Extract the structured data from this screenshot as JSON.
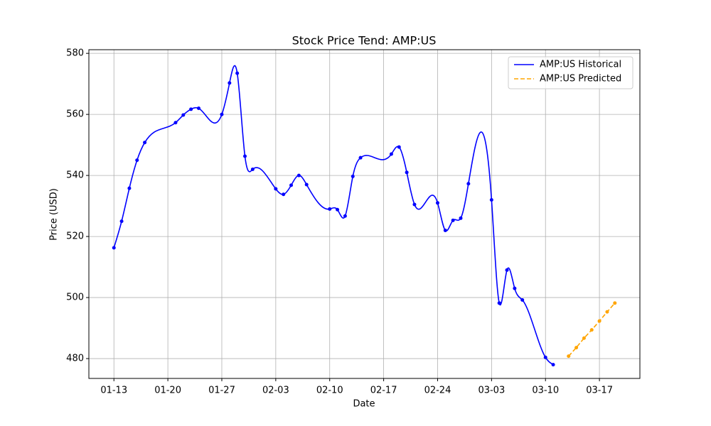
{
  "chart_data": {
    "type": "line",
    "title": "Stock Price Tend: AMP:US",
    "xlabel": "Date",
    "ylabel": "Price (USD)",
    "ylim": [
      473.5,
      581.2
    ],
    "yticks": [
      480,
      500,
      520,
      540,
      560,
      580
    ],
    "xticks": [
      "01-13",
      "01-20",
      "01-27",
      "02-03",
      "02-10",
      "02-17",
      "02-24",
      "03-03",
      "03-10",
      "03-17"
    ],
    "grid": true,
    "legend": "upper right",
    "series": [
      {
        "name": "AMP:US Historical",
        "color": "#0000ff",
        "style": "solid",
        "smooth": true,
        "x": [
          "01-13",
          "01-14",
          "01-15",
          "01-16",
          "01-17",
          "01-21",
          "01-22",
          "01-23",
          "01-24",
          "01-27",
          "01-28",
          "01-29",
          "01-30",
          "01-31",
          "02-03",
          "02-04",
          "02-05",
          "02-06",
          "02-07",
          "02-10",
          "02-11",
          "02-12",
          "02-13",
          "02-14",
          "02-18",
          "02-19",
          "02-20",
          "02-21",
          "02-24",
          "02-25",
          "02-26",
          "02-27",
          "02-28",
          "03-03",
          "03-04",
          "03-05",
          "03-06",
          "03-07",
          "03-10",
          "03-11"
        ],
        "values": [
          516.3,
          525,
          535.8,
          545,
          550.8,
          557.3,
          559.8,
          561.7,
          562,
          560,
          570.3,
          573.5,
          546.3,
          542,
          535.6,
          533.8,
          536.8,
          540,
          537,
          529,
          528.8,
          526.7,
          539.7,
          545.8,
          547,
          549.3,
          541,
          530.5,
          531,
          522,
          525.3,
          526,
          537.3,
          532,
          498.2,
          509,
          503,
          499.2,
          480.4,
          478
        ]
      },
      {
        "name": "AMP:US Predicted",
        "color": "#ffa500",
        "style": "dashed",
        "smooth": false,
        "x": [
          "03-13",
          "03-14",
          "03-15",
          "03-16",
          "03-17",
          "03-18",
          "03-19"
        ],
        "values": [
          480.8,
          483.6,
          486.7,
          489.4,
          492.3,
          495.3,
          498.2
        ]
      }
    ]
  }
}
